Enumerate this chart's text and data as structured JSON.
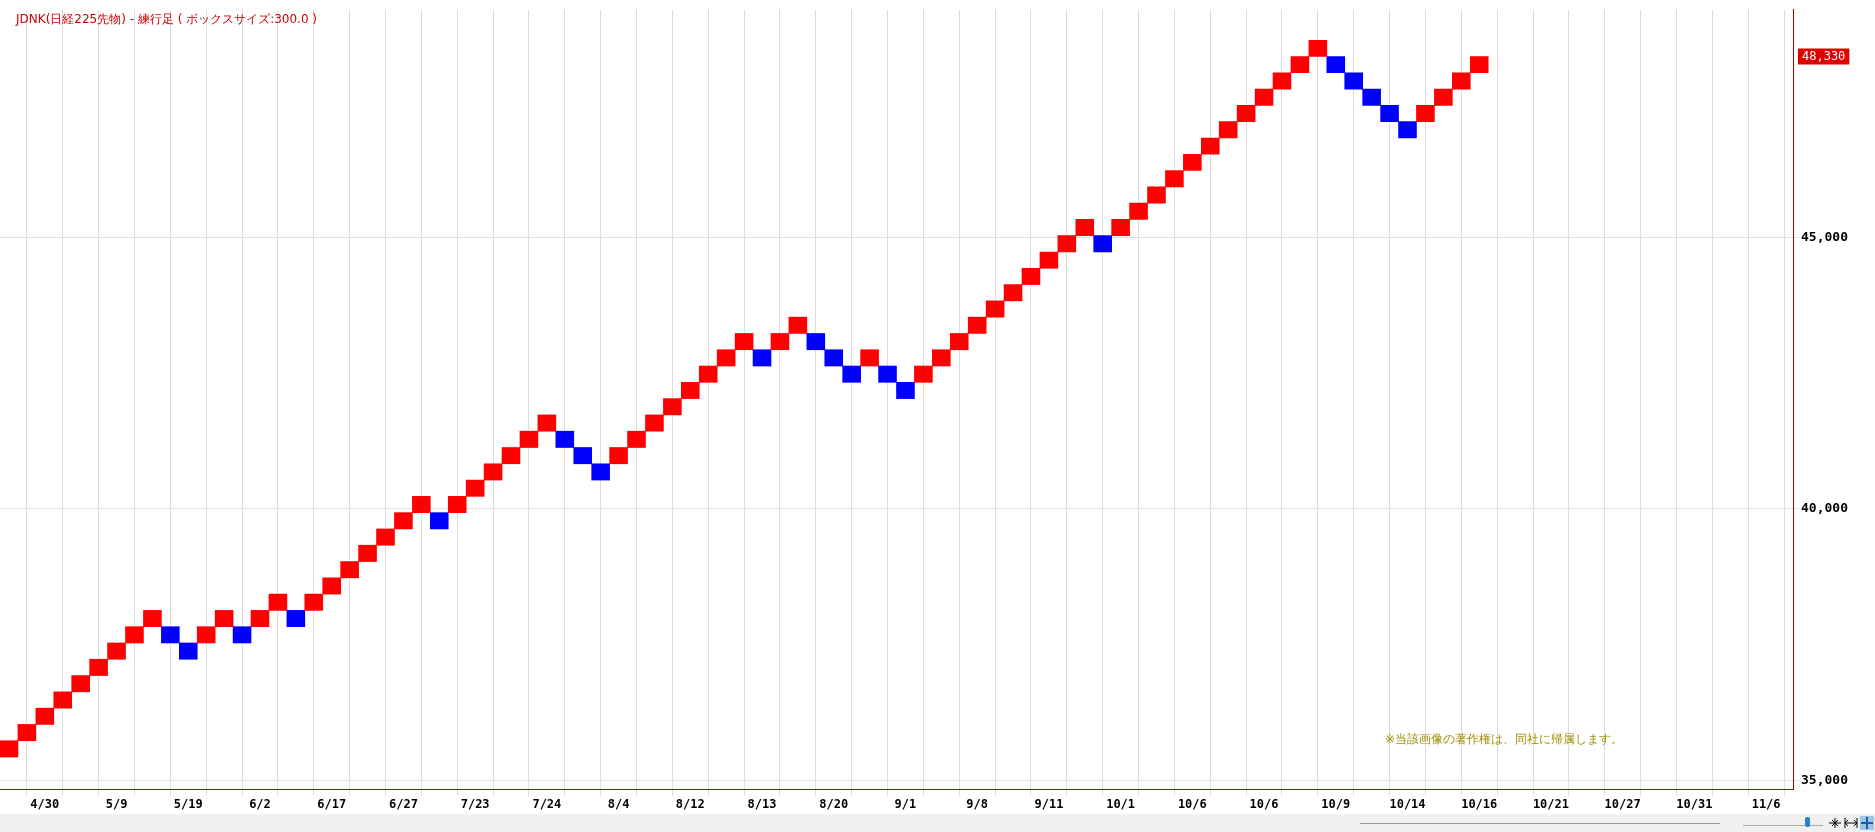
{
  "chart_data": {
    "type": "bar",
    "title": "JDNK(日経225先物) - 練行足 ( ボックスサイズ:300.0 )",
    "categories": [
      null,
      null,
      "4/30",
      null,
      null,
      null,
      "5/9",
      null,
      null,
      null,
      "5/19",
      null,
      null,
      null,
      "6/2",
      null,
      null,
      null,
      "6/17",
      null,
      null,
      null,
      "6/27",
      null,
      null,
      null,
      "7/23",
      null,
      null,
      null,
      "7/24",
      null,
      null,
      null,
      "8/4",
      null,
      null,
      null,
      "8/12",
      null,
      null,
      null,
      "8/13",
      null,
      null,
      null,
      "8/20",
      null,
      null,
      null,
      "9/1",
      null,
      null,
      null,
      "9/8",
      null,
      null,
      null,
      "9/11",
      null,
      null,
      null,
      "10/1",
      null,
      null,
      null,
      "10/6",
      null,
      null,
      null,
      "10/6",
      null,
      null,
      null,
      "10/9",
      null,
      null,
      null,
      "10/14",
      null,
      null,
      null,
      "10/16",
      null,
      null,
      null,
      "10/21",
      null,
      null,
      null,
      "10/27",
      null,
      null,
      null,
      "10/31",
      null,
      null,
      null,
      "11/6",
      null
    ],
    "base": [
      35430,
      35730,
      36030,
      36330,
      36630,
      36930,
      37230,
      37530,
      37830,
      37530,
      37230,
      37530,
      37830,
      37530,
      37830,
      38130,
      37830,
      38130,
      38430,
      38730,
      39030,
      39330,
      39630,
      39930,
      39630,
      39930,
      40230,
      40530,
      40830,
      41130,
      41430,
      41130,
      40830,
      40530,
      40830,
      41130,
      41430,
      41730,
      42030,
      42330,
      42630,
      42930,
      42630,
      42930,
      43230,
      42930,
      42630,
      42330,
      42630,
      42330,
      42030,
      42330,
      42630,
      42930,
      43230,
      43530,
      43830,
      44130,
      44430,
      44730,
      45030,
      44730,
      45030,
      45330,
      45630,
      45930,
      46230,
      46530,
      46830,
      47130,
      47430,
      47730,
      48030,
      48330,
      48030,
      47730,
      47430,
      47130,
      46830,
      47130,
      47430,
      47730,
      48030,
      null,
      null,
      null,
      null,
      null,
      null,
      null,
      null,
      null,
      null,
      null,
      null,
      null,
      null,
      null,
      null,
      null
    ],
    "values": [
      300,
      300,
      300,
      300,
      300,
      300,
      300,
      300,
      300,
      300,
      300,
      300,
      300,
      300,
      300,
      300,
      300,
      300,
      300,
      300,
      300,
      300,
      300,
      300,
      300,
      300,
      300,
      300,
      300,
      300,
      300,
      300,
      300,
      300,
      300,
      300,
      300,
      300,
      300,
      300,
      300,
      300,
      300,
      300,
      300,
      300,
      300,
      300,
      300,
      300,
      300,
      300,
      300,
      300,
      300,
      300,
      300,
      300,
      300,
      300,
      300,
      300,
      300,
      300,
      300,
      300,
      300,
      300,
      300,
      300,
      300,
      300,
      300,
      300,
      300,
      300,
      300,
      300,
      300,
      300,
      300,
      300,
      300,
      null,
      null,
      null,
      null,
      null,
      null,
      null,
      null,
      null,
      null,
      null,
      null,
      null,
      null,
      null,
      null,
      null
    ],
    "colors": [
      "#ff0000",
      "#ff0000",
      "#ff0000",
      "#ff0000",
      "#ff0000",
      "#ff0000",
      "#ff0000",
      "#ff0000",
      "#ff0000",
      "#0000ff",
      "#0000ff",
      "#ff0000",
      "#ff0000",
      "#0000ff",
      "#ff0000",
      "#ff0000",
      "#0000ff",
      "#ff0000",
      "#ff0000",
      "#ff0000",
      "#ff0000",
      "#ff0000",
      "#ff0000",
      "#ff0000",
      "#0000ff",
      "#ff0000",
      "#ff0000",
      "#ff0000",
      "#ff0000",
      "#ff0000",
      "#ff0000",
      "#0000ff",
      "#0000ff",
      "#0000ff",
      "#ff0000",
      "#ff0000",
      "#ff0000",
      "#ff0000",
      "#ff0000",
      "#ff0000",
      "#ff0000",
      "#ff0000",
      "#0000ff",
      "#ff0000",
      "#ff0000",
      "#0000ff",
      "#0000ff",
      "#0000ff",
      "#ff0000",
      "#0000ff",
      "#0000ff",
      "#ff0000",
      "#ff0000",
      "#ff0000",
      "#ff0000",
      "#ff0000",
      "#ff0000",
      "#ff0000",
      "#ff0000",
      "#ff0000",
      "#ff0000",
      "#0000ff",
      "#ff0000",
      "#ff0000",
      "#ff0000",
      "#ff0000",
      "#ff0000",
      "#ff0000",
      "#ff0000",
      "#ff0000",
      "#ff0000",
      "#ff0000",
      "#ff0000",
      "#ff0000",
      "#0000ff",
      "#0000ff",
      "#0000ff",
      "#0000ff",
      "#0000ff",
      "#ff0000",
      "#ff0000",
      "#ff0000",
      "#ff0000",
      null,
      null,
      null,
      null,
      null,
      null,
      null,
      null,
      null,
      null,
      null,
      null,
      null,
      null,
      null,
      null,
      null
    ],
    "ylim": [
      34830,
      49190
    ],
    "yticks": [
      {
        "value": 35000,
        "label": "35,000"
      },
      {
        "value": 40000,
        "label": "40,000"
      },
      {
        "value": 45000,
        "label": "45,000"
      }
    ],
    "grid": true,
    "annotations": [
      "48,330",
      "※当該画像の著作権は、同社に帰属します。"
    ]
  }
}
